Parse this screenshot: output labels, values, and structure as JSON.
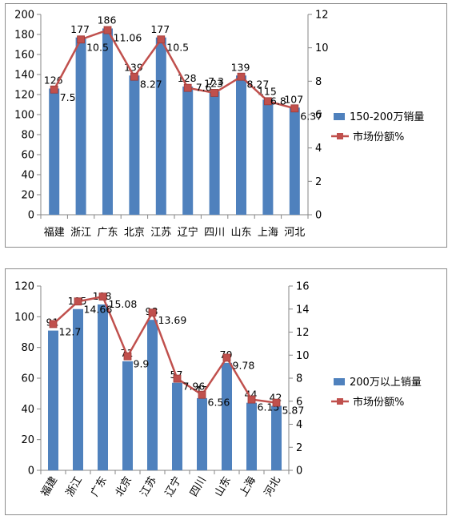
{
  "chart_data": [
    {
      "type": "bar",
      "categories": [
        "福建",
        "浙江",
        "广东",
        "北京",
        "江苏",
        "辽宁",
        "四川",
        "山东",
        "上海",
        "河北"
      ],
      "series": [
        {
          "name": "150-200万销量",
          "type": "bar",
          "axis": "left",
          "values": [
            126,
            177,
            186,
            139,
            177,
            128,
            123,
            139,
            115,
            107
          ]
        },
        {
          "name": "市场份额%",
          "type": "line",
          "axis": "right",
          "values": [
            7.5,
            10.5,
            11.06,
            8.27,
            10.5,
            7.6,
            7.3,
            8.27,
            6.8,
            6.37
          ]
        }
      ],
      "data_labels_bar": [
        "126",
        "177",
        "186",
        "139",
        "177",
        "128",
        "123",
        "139",
        "115",
        "107"
      ],
      "data_labels_line": [
        "7.5",
        "10.5",
        "11.06",
        "8.27",
        "10.5",
        "7.6",
        "7.3",
        "8.27",
        "6.8",
        "6.37"
      ],
      "ylim_left": [
        0,
        200
      ],
      "yticks_left": [
        "0",
        "20",
        "40",
        "60",
        "80",
        "100",
        "120",
        "140",
        "160",
        "180",
        "200"
      ],
      "ylim_right": [
        0,
        12
      ],
      "yticks_right": [
        "0",
        "2",
        "4",
        "6",
        "8",
        "10",
        "12"
      ],
      "bar_color": "#4f81bd",
      "line_color": "#c0504d",
      "legend_position": "right",
      "grid": false,
      "title": "",
      "xlabel": "",
      "ylabel": ""
    },
    {
      "type": "bar",
      "categories": [
        "福建",
        "浙江",
        "广东",
        "北京",
        "江苏",
        "辽宁",
        "四川",
        "山东",
        "上海",
        "河北"
      ],
      "series": [
        {
          "name": "200万以上销量",
          "type": "bar",
          "axis": "left",
          "values": [
            91,
            105,
            108,
            71,
            98,
            57,
            47,
            70,
            44,
            42
          ]
        },
        {
          "name": "市场份额%",
          "type": "line",
          "axis": "right",
          "values": [
            12.7,
            14.66,
            15.08,
            9.9,
            13.69,
            7.96,
            6.56,
            9.78,
            6.15,
            5.87
          ]
        }
      ],
      "data_labels_bar": [
        "91",
        "105",
        "108",
        "71",
        "98",
        "57",
        "47",
        "70",
        "44",
        "42"
      ],
      "data_labels_line": [
        "12.7",
        "14.66",
        "15.08",
        "9.9",
        "13.69",
        "7.96",
        "6.56",
        "9.78",
        "6.15",
        "5.87"
      ],
      "ylim_left": [
        0,
        120
      ],
      "yticks_left": [
        "0",
        "20",
        "40",
        "60",
        "80",
        "100",
        "120"
      ],
      "ylim_right": [
        0,
        16
      ],
      "yticks_right": [
        "0",
        "2",
        "4",
        "6",
        "8",
        "10",
        "12",
        "14",
        "16"
      ],
      "bar_color": "#4f81bd",
      "line_color": "#c0504d",
      "legend_position": "right",
      "grid": false,
      "title": "",
      "xlabel": "",
      "ylabel": ""
    }
  ]
}
